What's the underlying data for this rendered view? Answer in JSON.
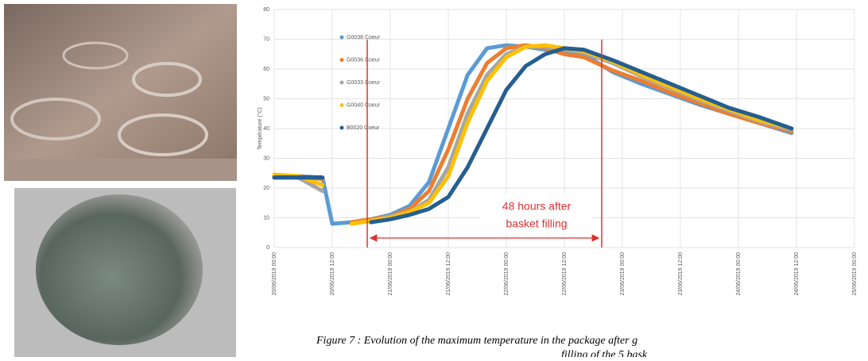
{
  "chart_data": {
    "type": "line",
    "y_label": "Température (°C)",
    "x": [
      0,
      5,
      10,
      12,
      16,
      20,
      24,
      28,
      32,
      36,
      40,
      44,
      48,
      52,
      56,
      60,
      64,
      70,
      76,
      82,
      88,
      94,
      100,
      107
    ],
    "series": [
      {
        "name": "G0038 Coeur",
        "color": "#5b9bd5",
        "values": [
          24,
          24,
          23.5,
          8,
          8.5,
          9.5,
          11,
          14,
          22,
          40,
          58,
          67,
          68,
          67.5,
          66.5,
          66,
          65,
          59,
          55,
          51.5,
          48,
          45,
          42,
          38.5
        ]
      },
      {
        "name": "G0036 Coeur",
        "color": "#ed7d31",
        "values": [
          23.5,
          24,
          23,
          null,
          8.5,
          9.5,
          10.5,
          13,
          19,
          33,
          50,
          62,
          67,
          68,
          67,
          65,
          64,
          59.5,
          56,
          52,
          48.5,
          45,
          42,
          39
        ]
      },
      {
        "name": "G0033 Coeur",
        "color": "#a5a5a5",
        "values": [
          24,
          23.5,
          19,
          null,
          8,
          9,
          10.5,
          12,
          16,
          27,
          45,
          58,
          65,
          67.5,
          67.5,
          66.5,
          65.5,
          62,
          57.5,
          53.5,
          49.5,
          46,
          42.5,
          39.5
        ]
      },
      {
        "name": "G0040 Coeur",
        "color": "#ffc000",
        "values": [
          24.5,
          24,
          21,
          null,
          8,
          9,
          10,
          12,
          15,
          24,
          42,
          56,
          64,
          67.5,
          68,
          67,
          66,
          62.5,
          58,
          54,
          50,
          46.5,
          43,
          40
        ]
      },
      {
        "name": "B0020 Coeur",
        "color": "#255e91",
        "values": [
          23.5,
          23.5,
          23.5,
          null,
          null,
          8.5,
          9.5,
          11,
          13,
          17,
          27,
          40,
          53,
          61,
          65,
          67,
          66.5,
          63,
          59,
          55,
          51,
          47,
          44,
          40
        ]
      }
    ],
    "xlim": [
      0,
      120
    ],
    "xticks": [
      {
        "value": 0,
        "label": "20/06/2019 00:00"
      },
      {
        "value": 12,
        "label": "20/06/2019 12:00"
      },
      {
        "value": 24,
        "label": "21/06/2019 00:00"
      },
      {
        "value": 36,
        "label": "21/06/2019 12:00"
      },
      {
        "value": 48,
        "label": "22/06/2019 00:00"
      },
      {
        "value": 60,
        "label": "22/06/2019 12:00"
      },
      {
        "value": 72,
        "label": "23/06/2019 00:00"
      },
      {
        "value": 84,
        "label": "23/06/2019 12:00"
      },
      {
        "value": 96,
        "label": "24/06/2019 00:00"
      },
      {
        "value": 108,
        "label": "24/06/2019 12:00"
      },
      {
        "value": 120,
        "label": "25/06/2019 00:00"
      }
    ],
    "ylim": [
      0,
      80
    ],
    "yticks": [
      0,
      10,
      20,
      30,
      40,
      50,
      60,
      70,
      80
    ],
    "grid": true,
    "legend": "upper left",
    "annotation": [
      "48  hours after",
      "basket filling"
    ],
    "caption": [
      "Figure 7 : Evolution of the maximum temperature in the package after g",
      "filling of the 5 bask"
    ]
  }
}
